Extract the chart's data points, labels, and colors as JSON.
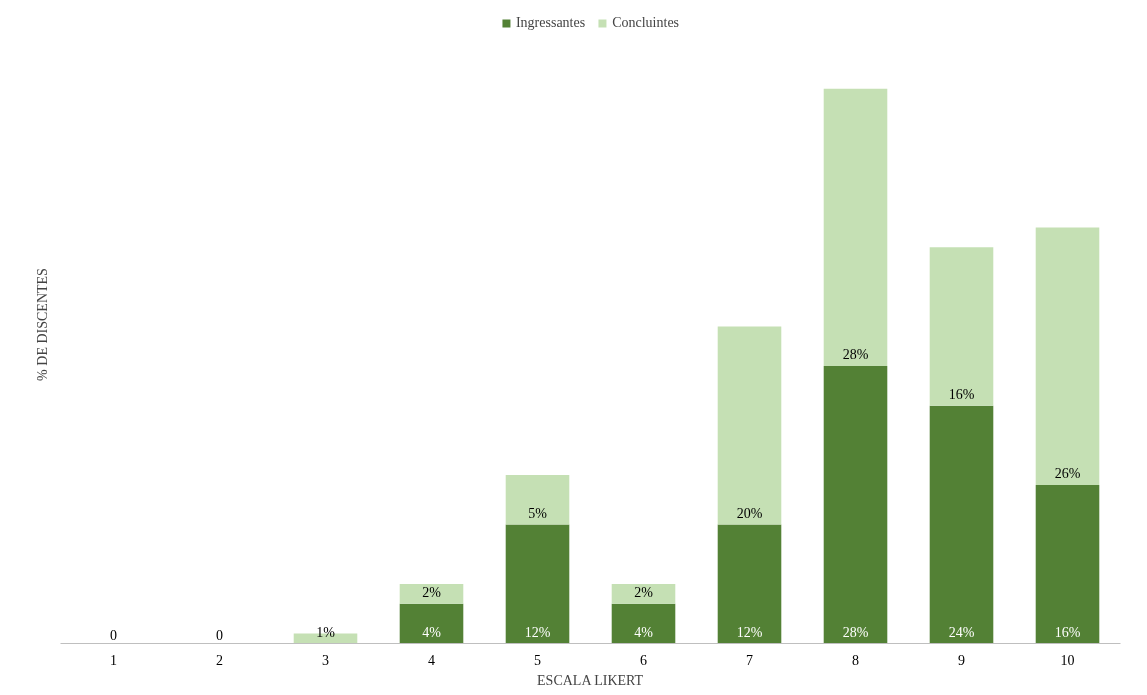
{
  "chart_data": {
    "type": "bar",
    "stacked": true,
    "xlabel": "ESCALA LIKERT",
    "ylabel": "% DE DISCENTES",
    "legend": "top",
    "tick_labels": "x",
    "categories": [
      "1",
      "2",
      "3",
      "4",
      "5",
      "6",
      "7",
      "8",
      "9",
      "10"
    ],
    "series": [
      {
        "name": "Ingressantes",
        "color": "#538135",
        "values": [
          0,
          0,
          0,
          4,
          12,
          4,
          12,
          28,
          24,
          16
        ],
        "value_labels": [
          "0",
          "0",
          null,
          "4%",
          "12%",
          "4%",
          "12%",
          "28%",
          "24%",
          "16%"
        ]
      },
      {
        "name": "Concluintes",
        "color": "#c5e0b4",
        "values": [
          0,
          0,
          1,
          2,
          5,
          2,
          20,
          28,
          16,
          26
        ],
        "value_labels": [
          null,
          null,
          "1%",
          "2%",
          "5%",
          "2%",
          "20%",
          "28%",
          "16%",
          "26%"
        ]
      }
    ]
  }
}
